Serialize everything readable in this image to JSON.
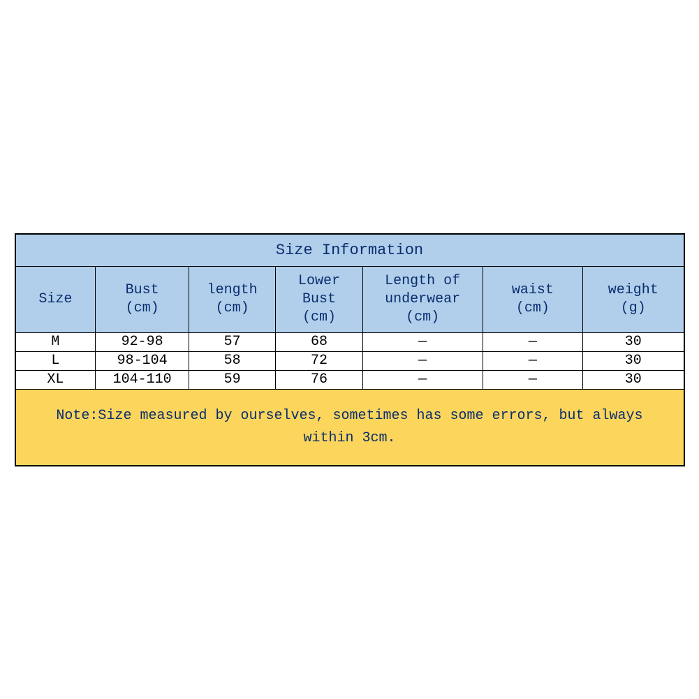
{
  "table": {
    "title": "Size Information",
    "title_bg": "#b1cfeb",
    "title_color": "#0a2d6e",
    "header_bg": "#b1cfeb",
    "header_color": "#0a2d6e",
    "data_bg": "#ffffff",
    "data_color": "#000000",
    "note_bg": "#fbd55c",
    "note_color": "#0a2d6e",
    "border_color": "#000000",
    "font_family": "Courier New, monospace",
    "title_fontsize": 22,
    "header_fontsize": 20,
    "data_fontsize": 20,
    "note_fontsize": 20,
    "column_widths_pct": [
      12,
      14,
      13,
      13,
      18,
      15,
      15
    ],
    "columns": [
      {
        "line1": "Size",
        "line2": ""
      },
      {
        "line1": "Bust",
        "line2": "(cm)"
      },
      {
        "line1": "length",
        "line2": "(cm)"
      },
      {
        "line1": "Lower Bust",
        "line2": "(cm)"
      },
      {
        "line1": "Length of underwear",
        "line2": "(cm)"
      },
      {
        "line1": "waist",
        "line2": "(cm)"
      },
      {
        "line1": "weight",
        "line2": "(g)"
      }
    ],
    "rows": [
      [
        "M",
        "92-98",
        "57",
        "68",
        "—",
        "—",
        "30"
      ],
      [
        "L",
        "98-104",
        "58",
        "72",
        "—",
        "—",
        "30"
      ],
      [
        "XL",
        "104-110",
        "59",
        "76",
        "—",
        "—",
        "30"
      ]
    ],
    "note": "Note:Size measured by ourselves, sometimes has some errors, but always within 3cm."
  }
}
